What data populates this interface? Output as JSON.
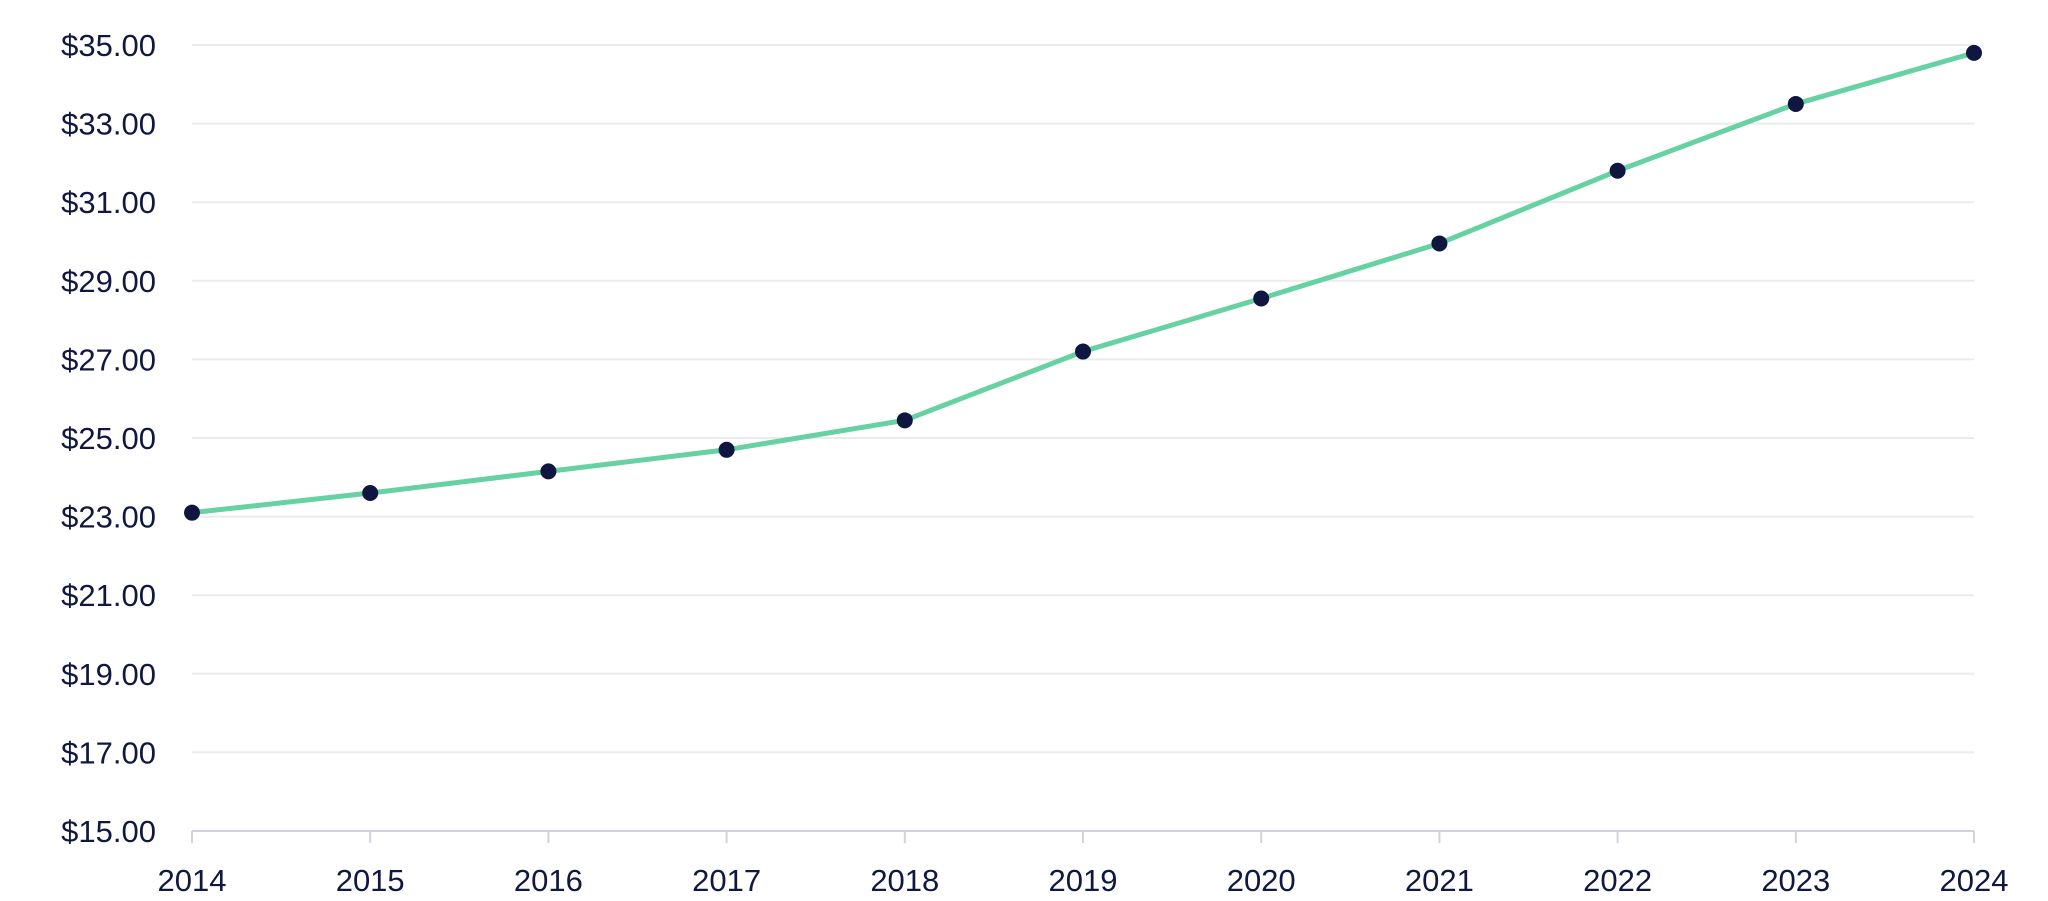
{
  "chart_data": {
    "type": "line",
    "title": "",
    "xlabel": "",
    "ylabel": "",
    "x": [
      "2014",
      "2015",
      "2016",
      "2017",
      "2018",
      "2019",
      "2020",
      "2021",
      "2022",
      "2023",
      "2024"
    ],
    "series": [
      {
        "values": [
          23.1,
          23.6,
          24.15,
          24.7,
          25.45,
          27.2,
          28.55,
          29.95,
          31.8,
          33.5,
          34.8
        ]
      }
    ],
    "ylim": [
      15,
      35
    ],
    "yticks": [
      15,
      17,
      19,
      21,
      23,
      25,
      27,
      29,
      31,
      33,
      35
    ],
    "ytick_labels": [
      "$15.00",
      "$17.00",
      "$19.00",
      "$21.00",
      "$23.00",
      "$25.00",
      "$27.00",
      "$29.00",
      "$31.00",
      "$33.00",
      "$35.00"
    ],
    "grid": true,
    "legend": "none",
    "colors": {
      "line": "#66d1a2",
      "marker": "#0f1740",
      "grid": "#ebebeb",
      "axis": "#d0d3da",
      "text": "#101840"
    }
  }
}
